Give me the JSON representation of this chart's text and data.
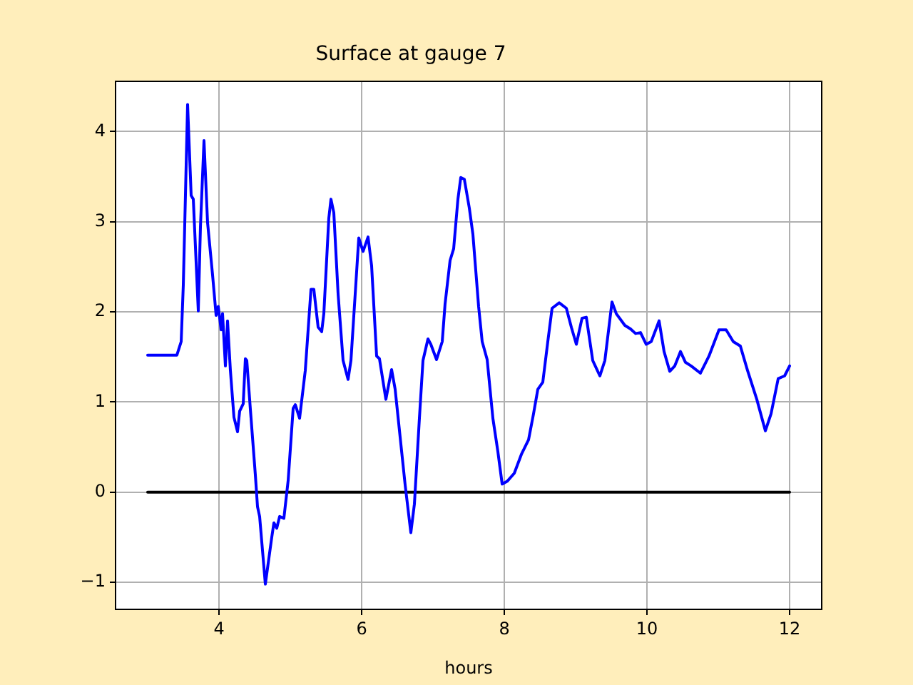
{
  "chart_data": {
    "type": "line",
    "title": "Surface at gauge 7",
    "xlabel": "hours",
    "xlim": [
      2.55,
      12.45
    ],
    "xticks": [
      4,
      6,
      8,
      10,
      12
    ],
    "ylim": [
      -1.3,
      4.56
    ],
    "yticks": [
      -1,
      0,
      1,
      2,
      3,
      4
    ],
    "grid": true,
    "marker": "none",
    "line_style": "solid",
    "series": [
      {
        "color": "#0000ff",
        "x": [
          3.0,
          3.41,
          3.47,
          3.5,
          3.56,
          3.61,
          3.64,
          3.71,
          3.74,
          3.79,
          3.84,
          3.91,
          3.96,
          3.99,
          4.03,
          4.05,
          4.09,
          4.12,
          4.16,
          4.21,
          4.26,
          4.29,
          4.34,
          4.37,
          4.39,
          4.44,
          4.51,
          4.54,
          4.57,
          4.65,
          4.74,
          4.77,
          4.81,
          4.85,
          4.91,
          4.97,
          5.04,
          5.07,
          5.13,
          5.21,
          5.29,
          5.33,
          5.39,
          5.44,
          5.47,
          5.54,
          5.57,
          5.61,
          5.67,
          5.74,
          5.81,
          5.85,
          5.91,
          5.96,
          6.02,
          6.09,
          6.14,
          6.21,
          6.25,
          6.34,
          6.42,
          6.47,
          6.54,
          6.61,
          6.69,
          6.74,
          6.81,
          6.86,
          6.93,
          6.97,
          7.05,
          7.13,
          7.17,
          7.24,
          7.29,
          7.35,
          7.39,
          7.44,
          7.51,
          7.56,
          7.64,
          7.69,
          7.76,
          7.84,
          7.91,
          7.97,
          8.04,
          8.14,
          8.24,
          8.34,
          8.41,
          8.47,
          8.54,
          8.61,
          8.67,
          8.77,
          8.87,
          8.94,
          9.01,
          9.09,
          9.15,
          9.24,
          9.34,
          9.41,
          9.51,
          9.57,
          9.69,
          9.77,
          9.84,
          9.91,
          9.99,
          10.06,
          10.17,
          10.24,
          10.32,
          10.39,
          10.47,
          10.54,
          10.62,
          10.75,
          10.87,
          11.01,
          11.11,
          11.21,
          11.31,
          11.41,
          11.54,
          11.66,
          11.74,
          11.84,
          11.93,
          12.0
        ],
        "values": [
          1.52,
          1.52,
          1.67,
          2.3,
          4.3,
          3.29,
          3.25,
          2.01,
          2.94,
          3.9,
          2.99,
          2.41,
          1.96,
          2.06,
          1.8,
          1.98,
          1.4,
          1.9,
          1.35,
          0.83,
          0.67,
          0.9,
          0.98,
          1.48,
          1.46,
          0.92,
          0.19,
          -0.16,
          -0.27,
          -1.02,
          -0.5,
          -0.34,
          -0.4,
          -0.27,
          -0.29,
          0.13,
          0.93,
          0.97,
          0.82,
          1.35,
          2.25,
          2.25,
          1.83,
          1.78,
          1.98,
          3.04,
          3.25,
          3.1,
          2.2,
          1.46,
          1.25,
          1.46,
          2.2,
          2.82,
          2.67,
          2.83,
          2.51,
          1.51,
          1.48,
          1.03,
          1.36,
          1.14,
          0.61,
          0.08,
          -0.45,
          -0.13,
          0.82,
          1.46,
          1.7,
          1.64,
          1.47,
          1.67,
          2.09,
          2.57,
          2.7,
          3.25,
          3.49,
          3.47,
          3.15,
          2.86,
          2.06,
          1.67,
          1.47,
          0.82,
          0.45,
          0.09,
          0.12,
          0.21,
          0.42,
          0.58,
          0.87,
          1.14,
          1.22,
          1.67,
          2.04,
          2.1,
          2.04,
          1.83,
          1.64,
          1.93,
          1.94,
          1.46,
          1.29,
          1.46,
          2.11,
          1.98,
          1.85,
          1.81,
          1.76,
          1.77,
          1.64,
          1.67,
          1.9,
          1.56,
          1.34,
          1.4,
          1.56,
          1.44,
          1.4,
          1.32,
          1.51,
          1.8,
          1.8,
          1.67,
          1.62,
          1.35,
          1.03,
          0.68,
          0.87,
          1.26,
          1.29,
          1.4
        ]
      },
      {
        "color": "#000000",
        "x": [
          3,
          12
        ],
        "values": [
          0,
          0
        ]
      }
    ]
  }
}
